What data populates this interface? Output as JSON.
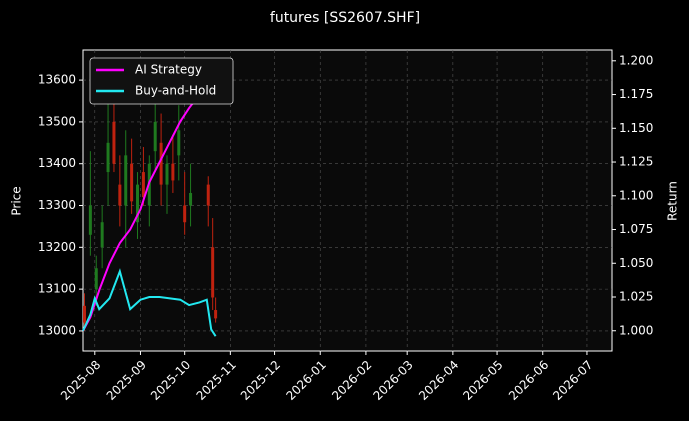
{
  "chart_data": {
    "type": "line",
    "title": "futures [SS2607.SHF]",
    "ylabel": "Price",
    "y2label": "Return",
    "xlim": [
      23,
      382
    ],
    "xticks": [
      {
        "value": 31,
        "label": "2025-08"
      },
      {
        "value": 62,
        "label": "2025-09"
      },
      {
        "value": 92,
        "label": "2025-10"
      },
      {
        "value": 123,
        "label": "2025-11"
      },
      {
        "value": 153,
        "label": "2025-12"
      },
      {
        "value": 184,
        "label": "2026-01"
      },
      {
        "value": 215,
        "label": "2026-02"
      },
      {
        "value": 243,
        "label": "2026-03"
      },
      {
        "value": 274,
        "label": "2026-04"
      },
      {
        "value": 304,
        "label": "2026-05"
      },
      {
        "value": 335,
        "label": "2026-06"
      },
      {
        "value": 365,
        "label": "2026-07"
      }
    ],
    "ylim": [
      12952,
      13672
    ],
    "yticks": [
      13000,
      13100,
      13200,
      13300,
      13400,
      13500,
      13600
    ],
    "y2lim": [
      0.985,
      1.208
    ],
    "y2ticks": [
      {
        "value": 1.0,
        "label": "1.000"
      },
      1.025,
      {
        "value": 1.05,
        "label": "1.050"
      },
      1.075,
      {
        "value": 1.1,
        "label": "1.100"
      },
      1.125,
      {
        "value": 1.15,
        "label": "1.150"
      },
      1.175,
      {
        "value": 1.2,
        "label": "1.200"
      }
    ],
    "grid": true,
    "legend": "upper left",
    "candles": {
      "up_color": "#1f7a1f",
      "down_color": "#c0220f",
      "x": [
        24,
        28,
        32,
        36,
        40,
        44,
        48,
        52,
        56,
        60,
        64,
        68,
        72,
        76,
        80,
        84,
        88,
        92,
        96,
        108,
        111,
        113
      ],
      "open": [
        13060,
        13230,
        13100,
        13200,
        13380,
        13500,
        13350,
        13300,
        13400,
        13260,
        13380,
        13300,
        13430,
        13450,
        13350,
        13400,
        13420,
        13300,
        13300,
        13350,
        13200,
        13050
      ],
      "high": [
        13090,
        13430,
        13180,
        13300,
        13600,
        13560,
        13420,
        13480,
        13460,
        13380,
        13440,
        13420,
        13560,
        13520,
        13420,
        13470,
        13540,
        13380,
        13400,
        13370,
        13270,
        13080
      ],
      "low": [
        13000,
        13180,
        13060,
        13150,
        13300,
        13380,
        13250,
        13200,
        13280,
        13220,
        13300,
        13250,
        13380,
        13300,
        13280,
        13330,
        13360,
        13230,
        13250,
        13250,
        13050,
        13020
      ],
      "close": [
        13020,
        13300,
        13150,
        13260,
        13450,
        13400,
        13300,
        13420,
        13310,
        13350,
        13320,
        13400,
        13500,
        13350,
        13400,
        13360,
        13480,
        13260,
        13330,
        13300,
        13080,
        13030
      ]
    },
    "x": [
      23,
      28,
      31,
      34,
      41,
      48,
      55,
      62,
      68,
      75,
      82,
      89,
      95,
      102,
      107,
      110,
      113
    ],
    "series": [
      {
        "name": "AI Strategy",
        "color": "#ff00ff",
        "axis": "y2",
        "values": [
          1.0,
          1.01,
          1.02,
          1.03,
          1.05,
          1.065,
          1.075,
          1.09,
          1.11,
          1.125,
          1.14,
          1.155,
          1.165,
          1.175,
          1.18,
          1.185,
          1.19
        ]
      },
      {
        "name": "Buy-and-Hold",
        "color": "#22e8f0",
        "axis": "y2",
        "values": [
          1.0,
          1.012,
          1.024,
          1.016,
          1.024,
          1.044,
          1.016,
          1.023,
          1.025,
          1.025,
          1.024,
          1.023,
          1.019,
          1.021,
          1.023,
          1.001,
          0.996
        ]
      }
    ]
  }
}
